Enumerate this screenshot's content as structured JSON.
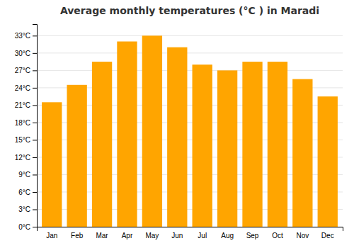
{
  "chart_data": {
    "type": "bar",
    "title": "Average monthly temperatures (°C ) in Maradi",
    "categories": [
      "Jan",
      "Feb",
      "Mar",
      "Apr",
      "May",
      "Jun",
      "Jul",
      "Aug",
      "Sep",
      "Oct",
      "Nov",
      "Dec"
    ],
    "values": [
      21.5,
      24.5,
      28.5,
      32.0,
      33.0,
      31.0,
      28.0,
      27.0,
      28.5,
      28.5,
      25.5,
      22.5
    ],
    "color": "#FFA500",
    "ylim": [
      0,
      35
    ],
    "yticks": [
      {
        "value": 0,
        "label": "0°C"
      },
      {
        "value": 3,
        "label": "3°C"
      },
      {
        "value": 6,
        "label": "6°C"
      },
      {
        "value": 9,
        "label": "9°C"
      },
      {
        "value": 12,
        "label": "12°C"
      },
      {
        "value": 15,
        "label": "15°C"
      },
      {
        "value": 18,
        "label": "18°C"
      },
      {
        "value": 21,
        "label": "21°C"
      },
      {
        "value": 24,
        "label": "24°C"
      },
      {
        "value": 27,
        "label": "27°C"
      },
      {
        "value": 30,
        "label": "30°C"
      },
      {
        "value": 33,
        "label": "33°C"
      }
    ],
    "grid": true
  }
}
